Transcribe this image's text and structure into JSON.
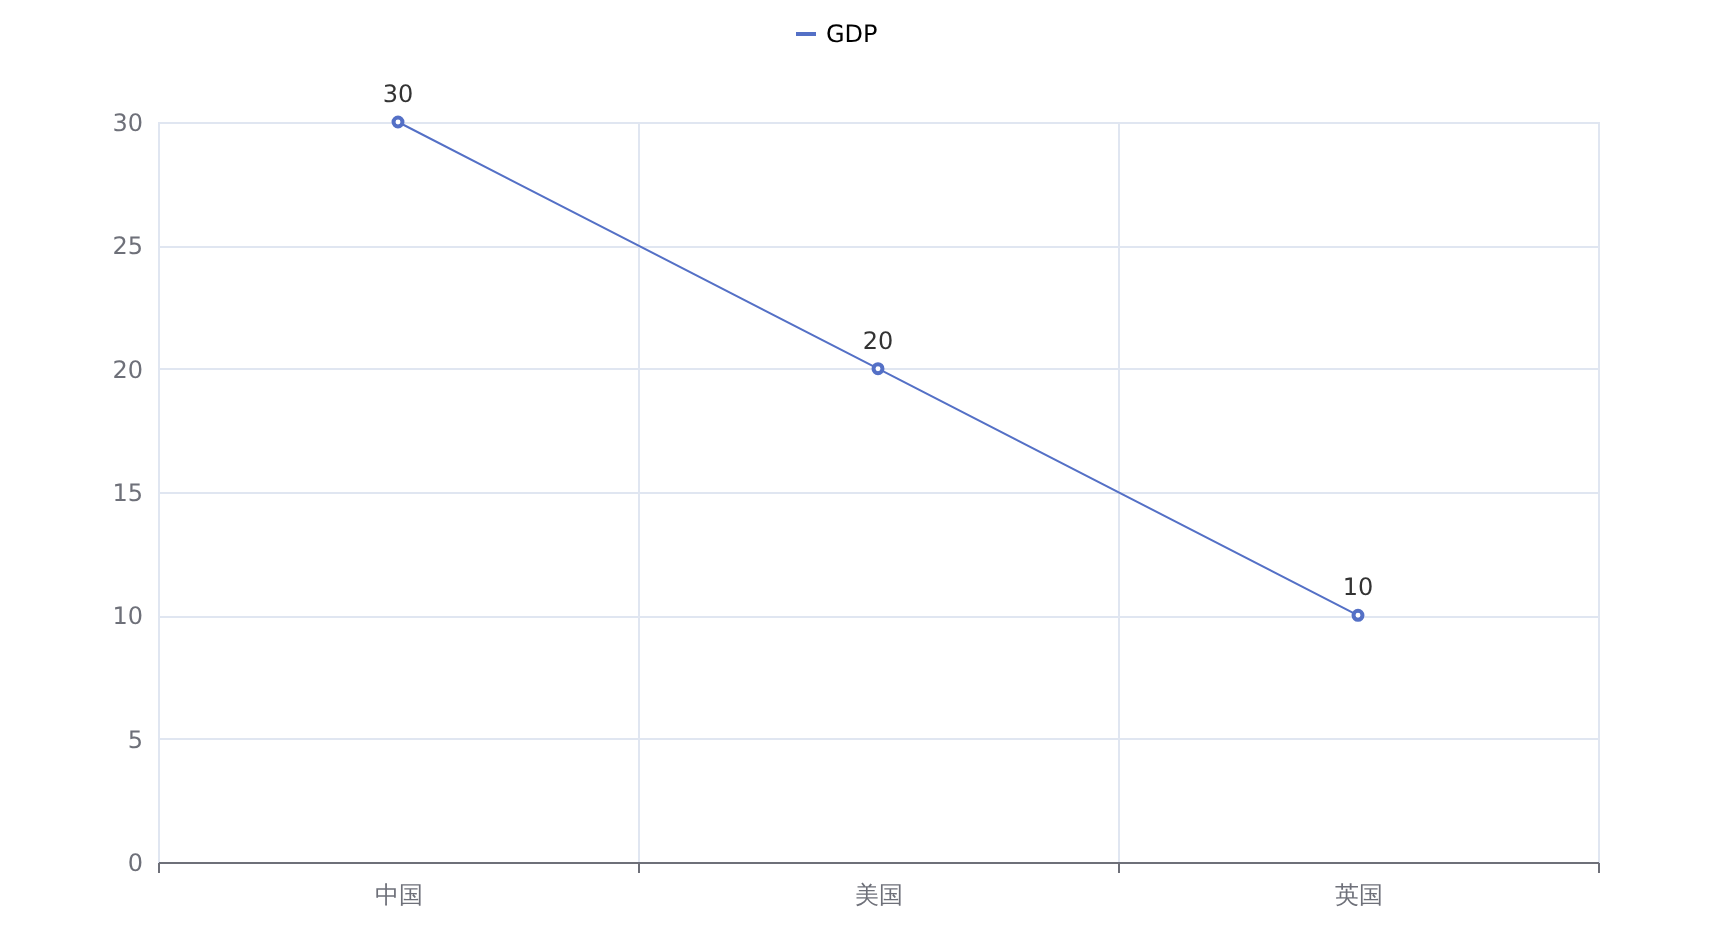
{
  "chart_data": {
    "type": "line",
    "categories": [
      "中国",
      "美国",
      "英国"
    ],
    "series": [
      {
        "name": "GDP",
        "color": "#5470c6",
        "values": [
          30,
          20,
          10
        ]
      }
    ],
    "ylim": [
      0,
      30
    ],
    "yticks": [
      0,
      5,
      10,
      15,
      20,
      25,
      30
    ],
    "grid": true,
    "legend": "top",
    "marker": "circle",
    "line_style": "solid",
    "data_labels": true
  }
}
